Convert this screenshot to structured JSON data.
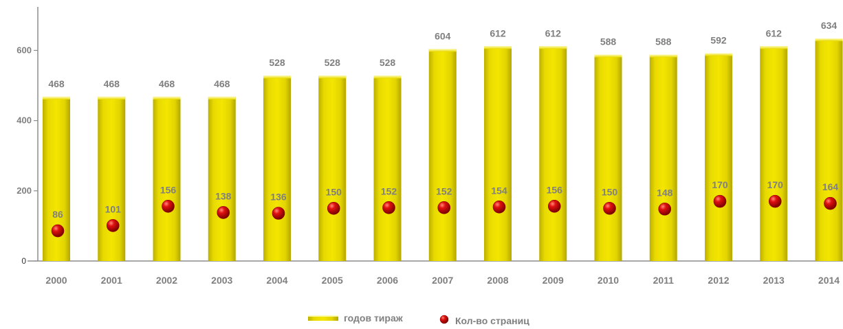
{
  "chart_data": {
    "type": "bar",
    "categories": [
      "2000",
      "2001",
      "2002",
      "2003",
      "2004",
      "2005",
      "2006",
      "2007",
      "2008",
      "2009",
      "2010",
      "2011",
      "2012",
      "2013",
      "2014"
    ],
    "series": [
      {
        "name": "годов тираж",
        "kind": "bar",
        "color": "#e6d800",
        "values": [
          468,
          468,
          468,
          468,
          528,
          528,
          528,
          604,
          612,
          612,
          588,
          588,
          592,
          612,
          634
        ]
      },
      {
        "name": "Кол-во страниц",
        "kind": "scatter",
        "color": "#d40000",
        "values": [
          86,
          101,
          156,
          138,
          136,
          150,
          152,
          152,
          154,
          156,
          150,
          148,
          170,
          170,
          164
        ]
      }
    ],
    "y_ticks": [
      "0",
      "200",
      "400",
      "600"
    ],
    "ylim": [
      0,
      700
    ],
    "grid": false,
    "legend_position": "bottom"
  }
}
